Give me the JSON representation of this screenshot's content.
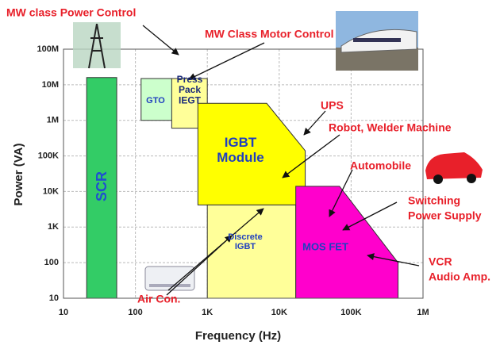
{
  "chart_data": {
    "type": "region",
    "xlabel": "Frequency (Hz)",
    "ylabel": "Power (VA)",
    "xscale": "log",
    "yscale": "log",
    "xlim": [
      10,
      1000000
    ],
    "ylim": [
      10,
      100000000
    ],
    "xticks": [
      10,
      100,
      {
        "value": 1000,
        "label": "1K"
      },
      {
        "value": 10000,
        "label": "10K"
      },
      {
        "value": 100000,
        "label": "100K"
      },
      {
        "value": 1000000,
        "label": "1M"
      }
    ],
    "yticks": [
      10,
      100,
      {
        "value": 1000,
        "label": "1K"
      },
      {
        "value": 10000,
        "label": "10K"
      },
      {
        "value": 100000,
        "label": "100K"
      },
      {
        "value": 1000000,
        "label": "1M"
      },
      {
        "value": 10000000,
        "label": "10M"
      },
      {
        "value": 100000000,
        "label": "100M"
      }
    ],
    "grid": true,
    "regions": [
      {
        "lines": [
          "SCR"
        ],
        "color": "#33cc66",
        "points": [
          [
            21,
            10
          ],
          [
            21,
            16000000
          ],
          [
            55,
            16000000
          ],
          [
            55,
            10
          ]
        ]
      },
      {
        "lines": [
          "GTO"
        ],
        "color": "#ccffcc",
        "points": [
          [
            120,
            1000000
          ],
          [
            120,
            15000000
          ],
          [
            340,
            15000000
          ],
          [
            340,
            1000000
          ]
        ]
      },
      {
        "lines": [
          "Press",
          "Pack",
          "IEGT"
        ],
        "color": "#ffff99",
        "points": [
          [
            320,
            600000
          ],
          [
            320,
            15000000
          ],
          [
            1000,
            15000000
          ],
          [
            1000,
            600000
          ]
        ]
      },
      {
        "lines": [
          "IGBT",
          "Module"
        ],
        "color": "#ffff00",
        "points": [
          [
            740,
            4200
          ],
          [
            740,
            3000000
          ],
          [
            6700,
            3000000
          ],
          [
            23000,
            140000
          ],
          [
            23000,
            4200
          ]
        ]
      },
      {
        "lines": [
          "Discrete",
          "IGBT"
        ],
        "color": "#ffff99",
        "points": [
          [
            1000,
            10
          ],
          [
            1000,
            4200
          ],
          [
            17000,
            4200
          ],
          [
            17000,
            10
          ]
        ]
      },
      {
        "lines": [
          "MOS FET"
        ],
        "color": "#ff00cc",
        "points": [
          [
            17000,
            10
          ],
          [
            17000,
            14000
          ],
          [
            69000,
            14000
          ],
          [
            450000,
            100
          ],
          [
            450000,
            10
          ]
        ]
      }
    ],
    "annotations": [
      {
        "lines": [
          "MW class Power Control"
        ]
      },
      {
        "lines": [
          "MW Class Motor Control"
        ]
      },
      {
        "lines": [
          "UPS"
        ]
      },
      {
        "lines": [
          "Robot, Welder Machine"
        ]
      },
      {
        "lines": [
          "Automobile"
        ]
      },
      {
        "lines": [
          "Switching",
          "Power Supply"
        ]
      },
      {
        "lines": [
          "VCR",
          "Audio Amp."
        ]
      },
      {
        "lines": [
          "Air Con."
        ]
      }
    ]
  }
}
